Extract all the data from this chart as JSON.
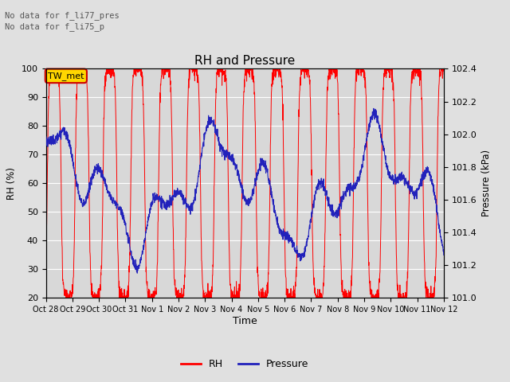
{
  "title": "RH and Pressure",
  "xlabel": "Time",
  "ylabel_left": "RH (%)",
  "ylabel_right": "Pressure (kPa)",
  "ylim_left": [
    20,
    100
  ],
  "ylim_right": [
    101.0,
    102.4
  ],
  "yticks_left": [
    20,
    30,
    40,
    50,
    60,
    70,
    80,
    90,
    100
  ],
  "yticks_right": [
    101.0,
    101.2,
    101.4,
    101.6,
    101.8,
    102.0,
    102.2,
    102.4
  ],
  "xtick_labels": [
    "Oct 28",
    "Oct 29",
    "Oct 30",
    "Oct 31",
    "Nov 1",
    "Nov 2",
    "Nov 3",
    "Nov 4",
    "Nov 5",
    "Nov 6",
    "Nov 7",
    "Nov 8",
    "Nov 9",
    "Nov 10",
    "Nov 11",
    "Nov 12"
  ],
  "no_data_text1": "No data for f_li77_pres",
  "no_data_text2": "No data for f_li75_p",
  "legend_box_label": "TW_met",
  "legend_box_color": "#FFD700",
  "legend_box_border": "#CC0000",
  "rh_color": "#FF0000",
  "pressure_color": "#2222BB",
  "bg_color": "#E0E0E0",
  "plot_bg_color": "#D8D8D8",
  "grid_color": "#FFFFFF",
  "n_points": 2000,
  "n_days": 15
}
